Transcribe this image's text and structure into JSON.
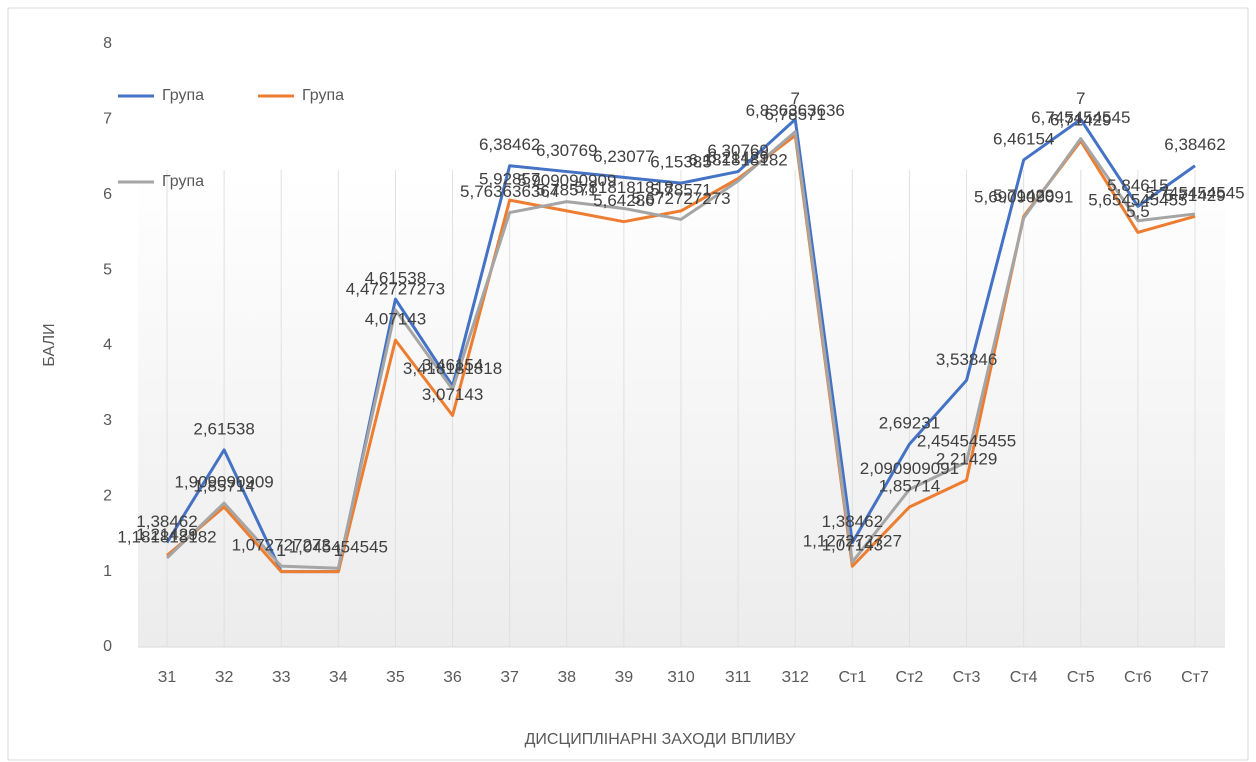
{
  "chart_data": {
    "type": "line",
    "y_label": "БАЛИ",
    "x_label": "ДИСЦИПЛІНАРНІ ЗАХОДИ ВПЛИВУ",
    "categories": [
      "З1",
      "З2",
      "З3",
      "З4",
      "З5",
      "З6",
      "З7",
      "З8",
      "З9",
      "З10",
      "З11",
      "З12",
      "Ст1",
      "Ст2",
      "Ст3",
      "Ст4",
      "Ст5",
      "Ст6",
      "Ст7"
    ],
    "ylim": [
      0,
      8
    ],
    "yticks": [
      0,
      1,
      2,
      3,
      4,
      5,
      6,
      7,
      8
    ],
    "series": [
      {
        "name": "Група",
        "color": "#4472c4",
        "values": [
          1.38462,
          2.61538,
          1,
          1,
          4.61538,
          3.46154,
          6.38462,
          6.30769,
          6.23077,
          6.15385,
          6.30769,
          7,
          1.38462,
          2.69231,
          3.53846,
          6.46154,
          7,
          5.84615,
          6.38462
        ],
        "value_labels": [
          "1,38462",
          "2,61538",
          "1",
          "1",
          "4,61538",
          "3,46154",
          "6,38462",
          "6,30769",
          "6,23077",
          "6,15385",
          "6,30769",
          "7",
          "1,38462",
          "2,69231",
          "3,53846",
          "6,46154",
          "7",
          "5,84615",
          "6,38462"
        ]
      },
      {
        "name": "Група",
        "color": "#ed7d31",
        "values": [
          1.21429,
          1.85714,
          1,
          1,
          4.07143,
          3.07143,
          5.92857,
          5.78571,
          5.64286,
          5.78571,
          6.21429,
          6.78571,
          1.07143,
          1.85714,
          2.21429,
          5.71429,
          6.71429,
          5.5,
          5.71429
        ],
        "value_labels": [
          "1,21429",
          "1,85714",
          "1",
          "1",
          "4,07143",
          "3,07143",
          "5,92857",
          "5,78571",
          "5,64286",
          "5,78571",
          "6,21429",
          "6,78571",
          "1,07143",
          "1,85714",
          "2,21429",
          "5,71429",
          "6,71429",
          "5,5",
          "5,71429"
        ]
      },
      {
        "name": "Група",
        "color": "#a5a5a5",
        "values": [
          1.181818182,
          1.909090909,
          1.072727273,
          1.045454545,
          4.472727273,
          3.418181818,
          5.763636364,
          5.909090909,
          5.818181818,
          5.672727273,
          6.181818182,
          6.836363636,
          1.127272727,
          2.090909091,
          2.454545455,
          5.690909091,
          6.745454545,
          5.654545455,
          5.745454545
        ],
        "value_labels": [
          "1,181818182",
          "1,909090909",
          "1,072727273",
          "1,045454545",
          "4,472727273",
          "3,418181818",
          "5,763636364",
          "5,909090909",
          "5,818181818",
          "5,672727273",
          "6,181818182",
          "6,836363636",
          "1,127272727",
          "2,090909091",
          "2,454545455",
          "5,690909091",
          "6,745454545",
          "5,654545455",
          "5,745454545"
        ]
      }
    ]
  }
}
